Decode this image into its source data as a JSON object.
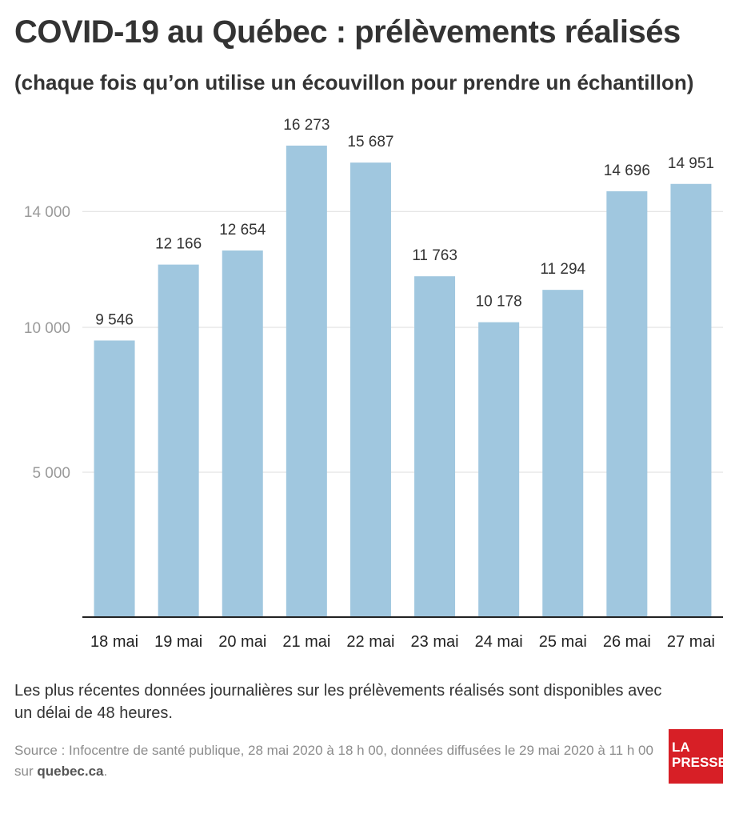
{
  "title": "COVID-19 au Québec : prélèvements réalisés",
  "subtitle": "(chaque fois qu’on utilise un écouvillon pour prendre un échantillon)",
  "chart_data": {
    "type": "bar",
    "categories": [
      "18 mai",
      "19 mai",
      "20 mai",
      "21 mai",
      "22 mai",
      "23 mai",
      "24 mai",
      "25 mai",
      "26 mai",
      "27 mai"
    ],
    "values": [
      9546,
      12166,
      12654,
      16273,
      15687,
      11763,
      10178,
      11294,
      14696,
      14951
    ],
    "value_labels": [
      "9 546",
      "12 166",
      "12 654",
      "16 273",
      "15 687",
      "11 763",
      "10 178",
      "11 294",
      "14 696",
      "14 951"
    ],
    "yticks": [
      5000,
      10000,
      14000
    ],
    "ytick_labels": [
      "5 000",
      "10 000",
      "14 000"
    ],
    "ylim": [
      0,
      17000
    ],
    "grid": true,
    "bar_color": "#a0c7df"
  },
  "note": "Les plus récentes données journalières sur les prélèvements réalisés sont disponibles avec un délai de 48 heures.",
  "source": {
    "text": "Source : Infocentre de santé publique, 28 mai 2020 à 18 h 00, données diffusées le 29 mai 2020 à 11 h 00 sur ",
    "site": "quebec.ca",
    "end": "."
  },
  "logo": {
    "line1": "LA",
    "line2": "PRESSE"
  }
}
